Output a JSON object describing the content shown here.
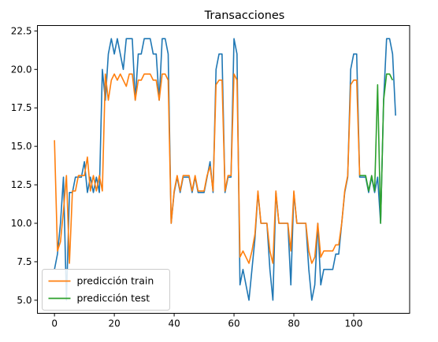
{
  "chart_data": {
    "type": "line",
    "title": "Transacciones",
    "xlabel": "",
    "ylabel": "",
    "xlim": [
      -5.7,
      118.7
    ],
    "ylim": [
      4.15,
      22.85
    ],
    "x_ticks": [
      0,
      20,
      40,
      60,
      80,
      100
    ],
    "x_tick_labels": [
      "0",
      "20",
      "40",
      "60",
      "80",
      "100"
    ],
    "y_ticks": [
      5.0,
      7.5,
      10.0,
      12.5,
      15.0,
      17.5,
      20.0,
      22.5
    ],
    "y_tick_labels": [
      "5.0",
      "7.5",
      "10.0",
      "12.5",
      "15.0",
      "17.5",
      "20.0",
      "22.5"
    ],
    "grid": false,
    "legend_position": "lower-left",
    "series": [
      {
        "name": "",
        "color": "#1f77b4",
        "in_legend": false,
        "x_start": 0,
        "values": [
          7,
          8,
          10,
          13,
          5,
          12,
          12,
          13,
          13,
          13,
          14,
          12,
          13,
          12,
          13,
          12,
          20,
          18,
          21,
          22,
          21,
          22,
          21,
          20,
          22,
          22,
          22,
          18,
          21,
          21,
          22,
          22,
          22,
          21,
          21,
          18,
          22,
          22,
          21,
          10,
          12,
          13,
          12,
          13,
          13,
          13,
          12,
          13,
          12,
          12,
          12,
          13,
          14,
          12,
          20,
          21,
          21,
          12,
          13,
          13,
          22,
          21,
          6,
          7,
          6,
          5,
          7,
          9,
          12,
          10,
          10,
          10,
          7,
          5,
          12,
          10,
          10,
          10,
          10,
          6,
          12,
          10,
          10,
          10,
          10,
          7,
          5,
          6,
          10,
          6,
          7,
          7,
          7,
          7,
          8,
          8,
          10,
          12,
          13,
          20,
          21,
          21,
          13,
          13,
          13,
          12,
          13,
          12,
          13,
          10,
          18,
          22,
          22,
          21,
          17
        ]
      },
      {
        "name": "predicción train",
        "color": "#ff7f0e",
        "in_legend": true,
        "x_start": 0,
        "values": [
          15.4,
          8.2,
          8.8,
          10.8,
          13.1,
          7.4,
          12.1,
          12.1,
          13.1,
          13.1,
          13.1,
          14.3,
          12.1,
          13.1,
          12.1,
          13.1,
          12.1,
          19.7,
          18.0,
          19.3,
          19.7,
          19.3,
          19.7,
          19.3,
          18.9,
          19.7,
          19.7,
          18.0,
          19.3,
          19.3,
          19.7,
          19.7,
          19.7,
          19.3,
          19.3,
          18.0,
          19.7,
          19.7,
          19.3,
          10.0,
          12.1,
          13.1,
          12.1,
          13.1,
          13.1,
          13.1,
          12.1,
          13.1,
          12.1,
          12.1,
          12.1,
          13.1,
          13.7,
          12.1,
          19.0,
          19.3,
          19.3,
          12.1,
          13.1,
          13.1,
          19.7,
          19.3,
          7.8,
          8.2,
          7.8,
          7.4,
          8.2,
          9.3,
          12.1,
          10.0,
          10.0,
          10.0,
          8.2,
          7.4,
          12.1,
          10.0,
          10.0,
          10.0,
          10.0,
          8.2,
          12.1,
          10.0,
          10.0,
          10.0,
          10.0,
          8.2,
          7.4,
          7.8,
          10.0,
          7.8,
          8.2,
          8.2,
          8.2,
          8.2,
          8.6,
          8.6,
          10.0,
          12.1,
          13.1,
          19.0,
          19.3,
          19.3,
          13.1
        ]
      },
      {
        "name": "predicción test",
        "color": "#2ca02c",
        "in_legend": true,
        "x_start": 102,
        "values": [
          13.1,
          13.1,
          13.1,
          12.1,
          13.1,
          12.1,
          19.0,
          10.0,
          18.0,
          19.7,
          19.7,
          19.3
        ]
      }
    ]
  }
}
